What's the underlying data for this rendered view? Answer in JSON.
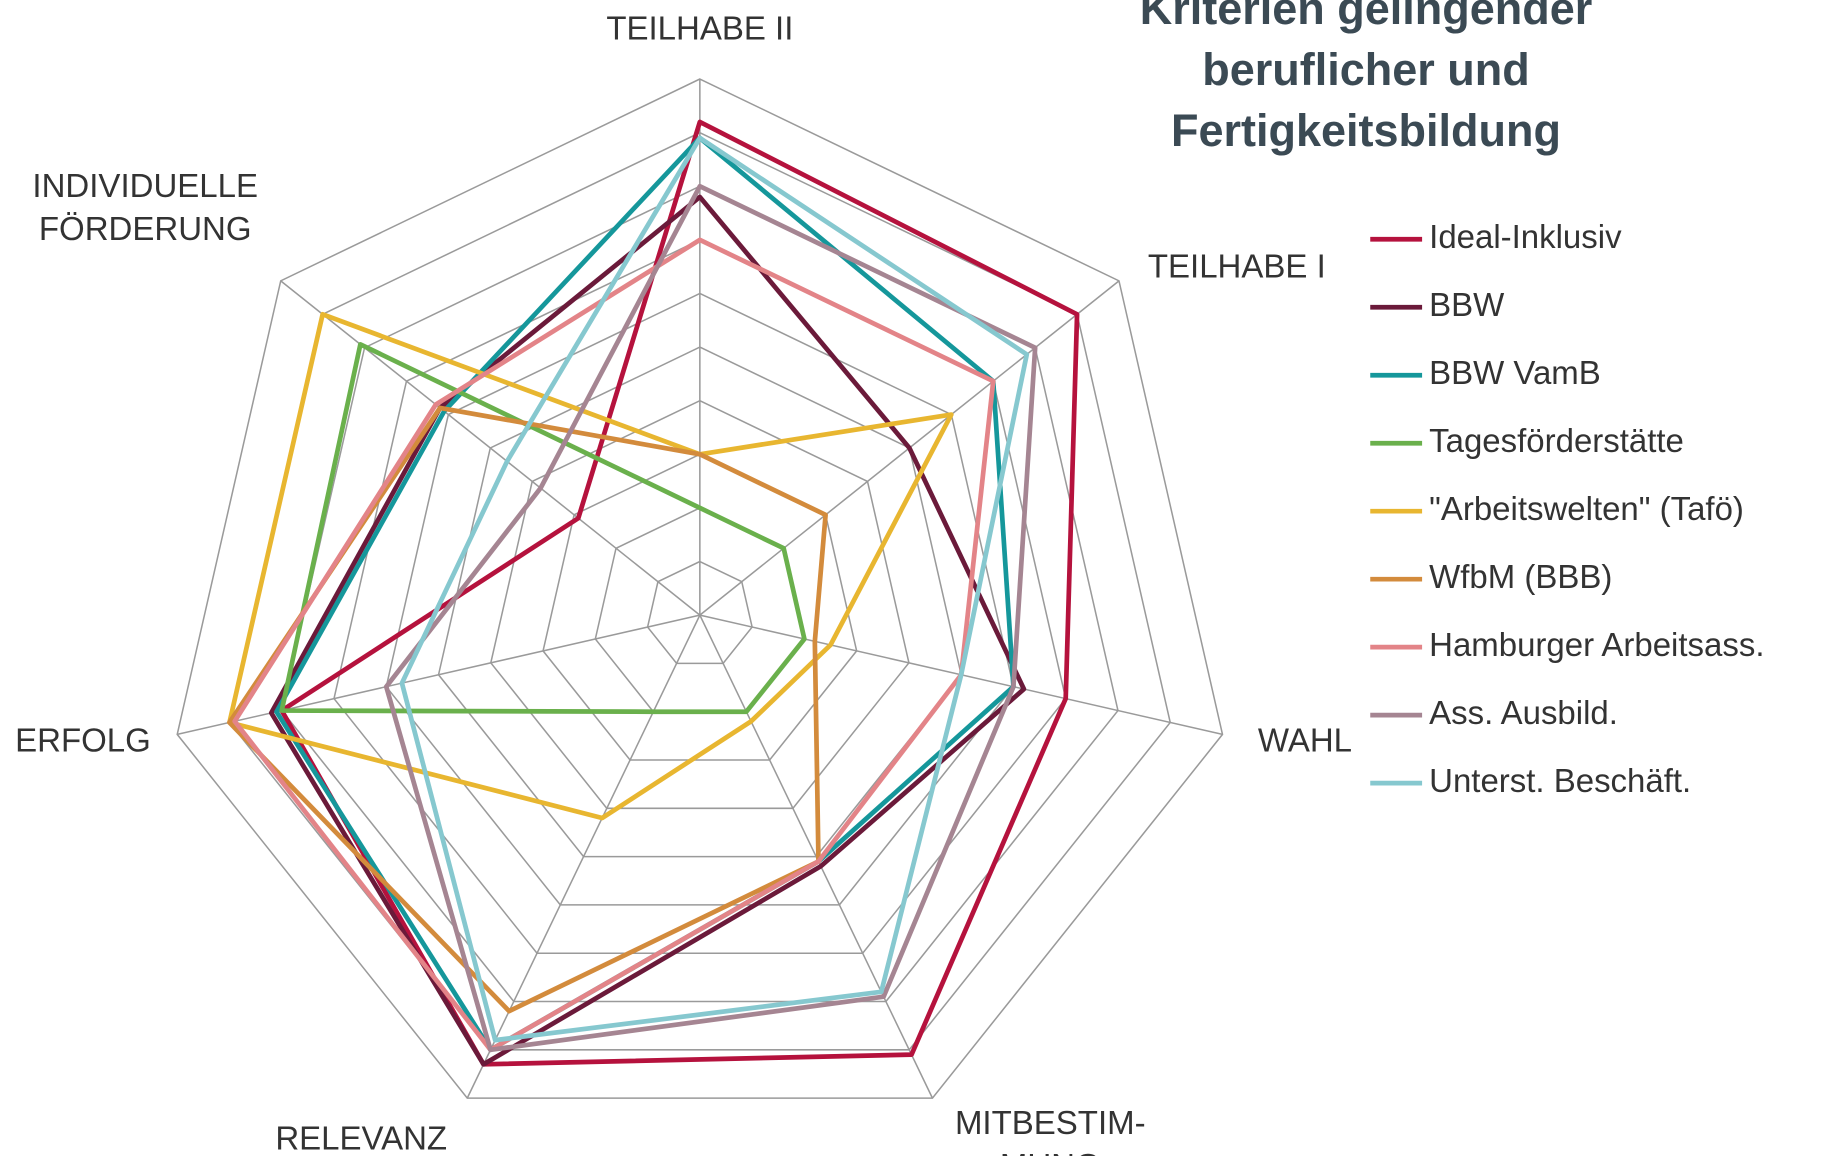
{
  "chart_data": {
    "type": "radar",
    "title": "Kriterien gelingender\nberuflicher und Fertigkeitsbildung",
    "categories": [
      "TEILHABE II",
      "TEILHABE I",
      "WAHL",
      "MITBESTIM-\nMUNG",
      "RELEVANZ",
      "ERFOLG",
      "INDIVIDUELLE\nFÖRDERUNG"
    ],
    "ylim": [
      0,
      10
    ],
    "yticks": [
      0,
      1,
      2,
      3,
      4,
      5,
      6,
      7,
      8,
      9,
      10
    ],
    "grid": true,
    "legend": "right",
    "series": [
      {
        "name": "Ideal-Inklusiv",
        "color": "#b5123d",
        "values": [
          9.2,
          9.0,
          7.0,
          9.1,
          9.3,
          8.0,
          2.9
        ]
      },
      {
        "name": "BBW",
        "color": "#6b1a3a",
        "values": [
          7.8,
          5.0,
          6.2,
          5.2,
          9.3,
          8.2,
          6.2
        ]
      },
      {
        "name": "BBW VamB",
        "color": "#15979b",
        "values": [
          8.9,
          7.0,
          6.0,
          5.1,
          9.0,
          8.1,
          6.1
        ]
      },
      {
        "name": "Tagesförderstätte",
        "color": "#6ab04c",
        "values": [
          2.0,
          2.0,
          2.0,
          2.0,
          2.0,
          8.0,
          8.1
        ]
      },
      {
        "name": "\"Arbeitswelten\" (Tafö)",
        "color": "#e8b630",
        "values": [
          3.0,
          6.0,
          2.5,
          2.2,
          4.2,
          9.0,
          9.0
        ]
      },
      {
        "name": "WfbM (BBB)",
        "color": "#d38b3c",
        "values": [
          3.0,
          3.0,
          2.2,
          5.1,
          8.2,
          9.0,
          6.2
        ]
      },
      {
        "name": "Hamburger Arbeitsass.",
        "color": "#e38488",
        "values": [
          7.0,
          7.0,
          5.0,
          5.1,
          9.0,
          8.9,
          6.3
        ]
      },
      {
        "name": "Ass. Ausbild.",
        "color": "#a58592",
        "values": [
          8.0,
          8.0,
          6.0,
          7.9,
          9.0,
          6.0,
          3.8
        ]
      },
      {
        "name": "Unterst. Beschäft.",
        "color": "#86c8cf",
        "values": [
          8.9,
          7.8,
          5.0,
          7.8,
          8.8,
          5.7,
          4.6
        ]
      }
    ]
  }
}
